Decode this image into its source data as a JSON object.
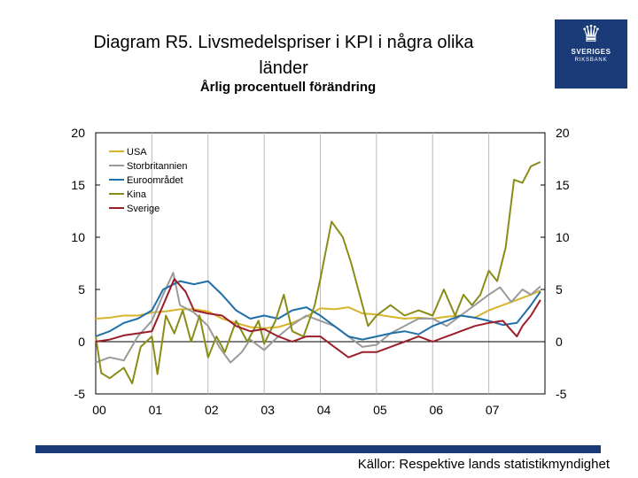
{
  "header": {
    "title_line1": "Diagram R5. Livsmedelspriser i KPI i några olika",
    "title_line2": "länder",
    "subtitle": "Årlig procentuell förändring"
  },
  "logo": {
    "line1": "SVERIGES",
    "line2": "RIKSBANK",
    "icon": "crown-logo-icon"
  },
  "footer": {
    "source": "Källor: Respektive lands statistikmyndighet"
  },
  "colors": {
    "USA": "#d8b42a",
    "Storbritannien": "#9a9a9a",
    "Euroområdet": "#1f6fa8",
    "Kina": "#8a8c18",
    "Sverige": "#9a1f2a",
    "bar": "#1a3a78"
  },
  "chart_data": {
    "type": "line",
    "title": "Diagram R5. Livsmedelspriser i KPI i några olika länder",
    "subtitle": "Årlig procentuell förändring",
    "ylim": [
      -5,
      20
    ],
    "yticks": [
      "20",
      "15",
      "10",
      "5",
      "0",
      "-5"
    ],
    "ytick_values": [
      20,
      15,
      10,
      5,
      0,
      -5
    ],
    "xticks": [
      "00",
      "01",
      "02",
      "03",
      "04",
      "05",
      "06",
      "07"
    ],
    "xlim": [
      2000,
      2008
    ],
    "legend_position": "top-left",
    "series": [
      {
        "name": "USA",
        "points": [
          [
            2000.0,
            2.2
          ],
          [
            2000.25,
            2.3
          ],
          [
            2000.5,
            2.5
          ],
          [
            2000.75,
            2.5
          ],
          [
            2001.0,
            2.8
          ],
          [
            2001.25,
            2.9
          ],
          [
            2001.5,
            3.1
          ],
          [
            2001.75,
            3.1
          ],
          [
            2002.0,
            2.9
          ],
          [
            2002.25,
            2.2
          ],
          [
            2002.5,
            1.8
          ],
          [
            2002.75,
            1.4
          ],
          [
            2003.0,
            1.3
          ],
          [
            2003.25,
            1.4
          ],
          [
            2003.5,
            1.8
          ],
          [
            2003.75,
            2.4
          ],
          [
            2004.0,
            3.2
          ],
          [
            2004.25,
            3.1
          ],
          [
            2004.5,
            3.3
          ],
          [
            2004.75,
            2.7
          ],
          [
            2005.0,
            2.6
          ],
          [
            2005.25,
            2.4
          ],
          [
            2005.5,
            2.2
          ],
          [
            2005.75,
            2.3
          ],
          [
            2006.0,
            2.2
          ],
          [
            2006.25,
            2.4
          ],
          [
            2006.5,
            2.5
          ],
          [
            2006.75,
            2.3
          ],
          [
            2007.0,
            3.0
          ],
          [
            2007.25,
            3.5
          ],
          [
            2007.5,
            4.0
          ],
          [
            2007.75,
            4.5
          ],
          [
            2007.92,
            4.9
          ]
        ]
      },
      {
        "name": "Storbritannien",
        "points": [
          [
            2000.0,
            -2.0
          ],
          [
            2000.25,
            -1.5
          ],
          [
            2000.5,
            -1.8
          ],
          [
            2000.75,
            0.5
          ],
          [
            2001.0,
            2.0
          ],
          [
            2001.2,
            4.5
          ],
          [
            2001.38,
            6.6
          ],
          [
            2001.5,
            3.5
          ],
          [
            2001.75,
            2.8
          ],
          [
            2002.0,
            1.5
          ],
          [
            2002.2,
            -0.5
          ],
          [
            2002.4,
            -2.0
          ],
          [
            2002.6,
            -1.0
          ],
          [
            2002.75,
            0.2
          ],
          [
            2003.0,
            -0.8
          ],
          [
            2003.25,
            0.5
          ],
          [
            2003.5,
            1.6
          ],
          [
            2003.75,
            2.5
          ],
          [
            2004.0,
            2.0
          ],
          [
            2004.25,
            1.5
          ],
          [
            2004.5,
            0.5
          ],
          [
            2004.75,
            -0.5
          ],
          [
            2005.0,
            -0.3
          ],
          [
            2005.25,
            0.8
          ],
          [
            2005.5,
            1.5
          ],
          [
            2005.75,
            2.2
          ],
          [
            2006.0,
            2.2
          ],
          [
            2006.25,
            1.5
          ],
          [
            2006.5,
            2.5
          ],
          [
            2006.75,
            3.5
          ],
          [
            2007.0,
            4.5
          ],
          [
            2007.2,
            5.2
          ],
          [
            2007.4,
            3.8
          ],
          [
            2007.6,
            5.0
          ],
          [
            2007.75,
            4.5
          ],
          [
            2007.92,
            5.3
          ]
        ]
      },
      {
        "name": "Euroområdet",
        "points": [
          [
            2000.0,
            0.5
          ],
          [
            2000.25,
            1.0
          ],
          [
            2000.5,
            1.8
          ],
          [
            2000.75,
            2.2
          ],
          [
            2001.0,
            3.0
          ],
          [
            2001.2,
            5.0
          ],
          [
            2001.5,
            5.8
          ],
          [
            2001.75,
            5.5
          ],
          [
            2002.0,
            5.8
          ],
          [
            2002.25,
            4.5
          ],
          [
            2002.5,
            3.0
          ],
          [
            2002.75,
            2.2
          ],
          [
            2003.0,
            2.5
          ],
          [
            2003.25,
            2.2
          ],
          [
            2003.5,
            3.0
          ],
          [
            2003.75,
            3.3
          ],
          [
            2004.0,
            2.5
          ],
          [
            2004.25,
            1.5
          ],
          [
            2004.5,
            0.5
          ],
          [
            2004.75,
            0.2
          ],
          [
            2005.0,
            0.5
          ],
          [
            2005.25,
            0.8
          ],
          [
            2005.5,
            1.0
          ],
          [
            2005.75,
            0.7
          ],
          [
            2006.0,
            1.5
          ],
          [
            2006.25,
            2.0
          ],
          [
            2006.5,
            2.5
          ],
          [
            2006.75,
            2.3
          ],
          [
            2007.0,
            2.0
          ],
          [
            2007.25,
            1.6
          ],
          [
            2007.5,
            1.8
          ],
          [
            2007.75,
            3.5
          ],
          [
            2007.92,
            4.8
          ]
        ]
      },
      {
        "name": "Kina",
        "points": [
          [
            2000.0,
            0.5
          ],
          [
            2000.1,
            -3.0
          ],
          [
            2000.25,
            -3.5
          ],
          [
            2000.5,
            -2.5
          ],
          [
            2000.65,
            -4.0
          ],
          [
            2000.8,
            -0.5
          ],
          [
            2001.0,
            0.5
          ],
          [
            2001.1,
            -3.1
          ],
          [
            2001.25,
            2.5
          ],
          [
            2001.4,
            0.8
          ],
          [
            2001.55,
            3.0
          ],
          [
            2001.7,
            0.0
          ],
          [
            2001.85,
            2.5
          ],
          [
            2002.0,
            -1.5
          ],
          [
            2002.15,
            0.5
          ],
          [
            2002.3,
            -1.0
          ],
          [
            2002.5,
            2.0
          ],
          [
            2002.7,
            0.0
          ],
          [
            2002.9,
            2.0
          ],
          [
            2003.0,
            -0.2
          ],
          [
            2003.2,
            2.0
          ],
          [
            2003.35,
            4.5
          ],
          [
            2003.5,
            1.0
          ],
          [
            2003.7,
            0.5
          ],
          [
            2003.9,
            3.5
          ],
          [
            2004.0,
            6.0
          ],
          [
            2004.2,
            11.5
          ],
          [
            2004.4,
            10.0
          ],
          [
            2004.55,
            7.5
          ],
          [
            2004.7,
            4.5
          ],
          [
            2004.85,
            1.5
          ],
          [
            2005.0,
            2.5
          ],
          [
            2005.25,
            3.5
          ],
          [
            2005.5,
            2.5
          ],
          [
            2005.75,
            3.0
          ],
          [
            2006.0,
            2.5
          ],
          [
            2006.2,
            5.0
          ],
          [
            2006.4,
            2.5
          ],
          [
            2006.55,
            4.5
          ],
          [
            2006.7,
            3.5
          ],
          [
            2006.85,
            4.5
          ],
          [
            2007.0,
            6.8
          ],
          [
            2007.15,
            5.8
          ],
          [
            2007.3,
            9.0
          ],
          [
            2007.45,
            15.5
          ],
          [
            2007.6,
            15.2
          ],
          [
            2007.75,
            16.8
          ],
          [
            2007.92,
            17.2
          ]
        ]
      },
      {
        "name": "Sverige",
        "points": [
          [
            2000.0,
            0.0
          ],
          [
            2000.25,
            0.2
          ],
          [
            2000.5,
            0.6
          ],
          [
            2000.75,
            0.8
          ],
          [
            2001.0,
            1.0
          ],
          [
            2001.2,
            3.5
          ],
          [
            2001.4,
            6.0
          ],
          [
            2001.6,
            4.8
          ],
          [
            2001.75,
            3.0
          ],
          [
            2002.0,
            2.7
          ],
          [
            2002.25,
            2.5
          ],
          [
            2002.5,
            1.5
          ],
          [
            2002.75,
            1.0
          ],
          [
            2003.0,
            1.2
          ],
          [
            2003.25,
            0.5
          ],
          [
            2003.5,
            0.0
          ],
          [
            2003.75,
            0.5
          ],
          [
            2004.0,
            0.5
          ],
          [
            2004.25,
            -0.5
          ],
          [
            2004.5,
            -1.5
          ],
          [
            2004.75,
            -1.0
          ],
          [
            2005.0,
            -1.0
          ],
          [
            2005.25,
            -0.5
          ],
          [
            2005.5,
            0.0
          ],
          [
            2005.75,
            0.5
          ],
          [
            2006.0,
            0.0
          ],
          [
            2006.25,
            0.5
          ],
          [
            2006.5,
            1.0
          ],
          [
            2006.75,
            1.5
          ],
          [
            2007.0,
            1.8
          ],
          [
            2007.25,
            2.0
          ],
          [
            2007.5,
            0.5
          ],
          [
            2007.6,
            1.5
          ],
          [
            2007.75,
            2.5
          ],
          [
            2007.92,
            4.0
          ]
        ]
      }
    ]
  }
}
